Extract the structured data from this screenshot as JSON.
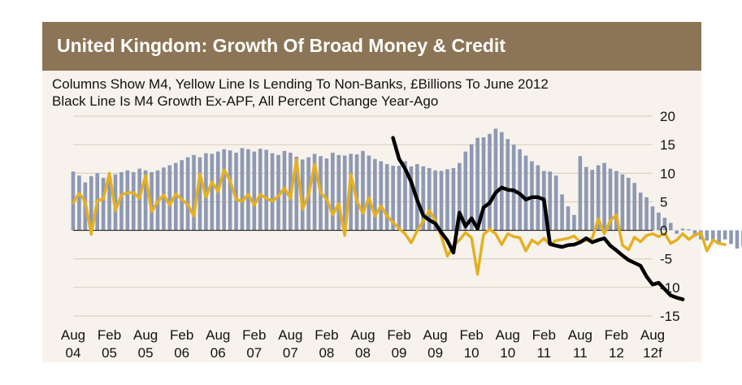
{
  "title": "United Kingdom:  Growth Of Broad Money & Credit",
  "subtitle_line1": "Columns Show M4, Yellow Line Is Lending To Non-Banks, £Billions To June 2012",
  "subtitle_line2": "Black Line Is M4 Growth Ex-APF, All Percent Change Year-Ago",
  "colors": {
    "header": "#8c7556",
    "background": "#f7f3ec",
    "columns": "#8e99b3",
    "lending": "#e4b023",
    "m4_ex_apf": "#000000",
    "grid": "#d6c9ba"
  },
  "chart_data": {
    "type": "bar+line",
    "x_start": "2004-08",
    "x_tick_labels": [
      {
        "month": "Aug",
        "year": "04",
        "date": "2004-08"
      },
      {
        "month": "Feb",
        "year": "05",
        "date": "2005-02"
      },
      {
        "month": "Aug",
        "year": "05",
        "date": "2005-08"
      },
      {
        "month": "Feb",
        "year": "06",
        "date": "2006-02"
      },
      {
        "month": "Aug",
        "year": "06",
        "date": "2006-08"
      },
      {
        "month": "Feb",
        "year": "07",
        "date": "2007-02"
      },
      {
        "month": "Aug",
        "year": "07",
        "date": "2007-08"
      },
      {
        "month": "Feb",
        "year": "08",
        "date": "2008-02"
      },
      {
        "month": "Aug",
        "year": "08",
        "date": "2008-08"
      },
      {
        "month": "Feb",
        "year": "09",
        "date": "2009-02"
      },
      {
        "month": "Aug",
        "year": "09",
        "date": "2009-08"
      },
      {
        "month": "Feb",
        "year": "10",
        "date": "2010-02"
      },
      {
        "month": "Aug",
        "year": "10",
        "date": "2010-08"
      },
      {
        "month": "Feb",
        "year": "11",
        "date": "2011-02"
      },
      {
        "month": "Aug",
        "year": "11",
        "date": "2011-08"
      },
      {
        "month": "Feb",
        "year": "12",
        "date": "2012-02"
      },
      {
        "month": "Aug",
        "year": "12f",
        "date": "2012-08"
      }
    ],
    "y_ticks": [
      20,
      15,
      10,
      5,
      0,
      -5,
      -10,
      -15
    ],
    "ylim": [
      -15,
      20
    ],
    "xlim": [
      "2004-08",
      "2012-08"
    ],
    "grid": "horizontal",
    "series": [
      {
        "kind": "columns",
        "values": [
          10.3,
          9.6,
          8.4,
          9.5,
          10,
          9.2,
          9.1,
          9.8,
          10.2,
          10.5,
          10.2,
          10.8,
          10.5,
          10.2,
          10.5,
          11,
          11.4,
          11.8,
          12.3,
          12.8,
          13.2,
          12.8,
          13.5,
          13.4,
          13.8,
          14.2,
          14,
          13.6,
          14.4,
          14.2,
          13.8,
          14.3,
          14.1,
          13.5,
          13.2,
          13.9,
          13.6,
          12.9,
          12.4,
          12.8,
          13.4,
          13,
          12.6,
          13.6,
          13.2,
          13.1,
          13.4,
          13.3,
          13.9,
          13.1,
          12.5,
          12.1,
          11.6,
          11.3,
          11.3,
          12.1,
          11.2,
          11.6,
          11.2,
          10.9,
          10.5,
          10.4,
          10.7,
          10.9,
          11.8,
          13.8,
          15.1,
          16.2,
          16.3,
          16.9,
          17.8,
          17.2,
          16,
          15,
          14.2,
          13.1,
          12.1,
          11.4,
          10.4,
          10.3,
          9.6,
          6.3,
          4.2,
          2.7,
          13,
          11.1,
          10.6,
          11.4,
          11.8,
          10.8,
          10.4,
          9.8,
          9.2,
          8.3,
          6.6,
          5.8,
          4.2,
          3.1,
          2.2,
          1.3,
          -0.6,
          0.3,
          0.2,
          -1.1,
          -1.6,
          -1.8,
          -2,
          -2.5,
          -1.6,
          -2.4,
          -3.2,
          -2.8,
          -2.9,
          -3.8,
          -3.7,
          -2.2,
          -4.3,
          -3.1,
          -4.1,
          -3.3,
          -3.6
        ]
      },
      {
        "kind": "line",
        "color_key": "lending",
        "values": [
          4.8,
          6.5,
          5,
          -0.7,
          5.2,
          5.5,
          10,
          3.5,
          6.2,
          6.6,
          6.6,
          5.6,
          9.6,
          3.3,
          5,
          6.2,
          4.4,
          6.4,
          5.4,
          4.5,
          2.5,
          9.9,
          5.8,
          8.5,
          6.8,
          10.6,
          8.7,
          5.4,
          5.1,
          6.3,
          4.4,
          6.3,
          5.6,
          5.1,
          6,
          7.4,
          5.6,
          12.4,
          3.7,
          6.2,
          11.6,
          6.6,
          5.5,
          2.7,
          4.7,
          -0.9,
          9.8,
          5.1,
          3,
          5.7,
          2.5,
          4.3,
          2.5,
          1.4,
          0.3,
          -0.6,
          -2.2,
          -0.1,
          1.6,
          3.5,
          1.7,
          -1.1,
          -4.5,
          -2.7,
          -1.7,
          -0.4,
          -1.3,
          -7.7,
          -0.7,
          0.2,
          -0.6,
          -2.5,
          -0.6,
          -1.1,
          -1.3,
          -3.6,
          -1.7,
          -2.4,
          -1.4,
          -2.5,
          -1.8,
          -1.6,
          -1.4,
          -1,
          -2,
          -1.8,
          -1.4,
          2,
          -0.6,
          1.7,
          2.7,
          -2.6,
          -3.4,
          -1.2,
          -2,
          -0.9,
          -0.6,
          -1.1,
          -0.5,
          -2.3,
          -1.7,
          -0.6,
          -1.6,
          -0.8,
          -0.4,
          -3.6,
          -1.7,
          -2.3,
          -2.5
        ]
      },
      {
        "kind": "line",
        "color_key": "m4_ex_apf",
        "x_start": "2009-01",
        "values": [
          16.2,
          12.5,
          10.8,
          8.5,
          5.3,
          2.6,
          1.8,
          1.2,
          -0.4,
          -1.8,
          -3.9,
          3.1,
          0.7,
          2.1,
          0.3,
          4,
          4.8,
          6.6,
          7.5,
          7.1,
          7,
          6.4,
          5.4,
          5.8,
          5.8,
          5.4,
          -2.4,
          -2.7,
          -2.9,
          -2.6,
          -2.5,
          -2.1,
          -1.4,
          -2.1,
          -1.7,
          -1.4,
          -2.7,
          -3.5,
          -4.4,
          -5.2,
          -5.7,
          -6.2,
          -8.1,
          -9.5,
          -9.2,
          -10.3,
          -11.4,
          -11.8,
          -12.1
        ]
      }
    ]
  }
}
